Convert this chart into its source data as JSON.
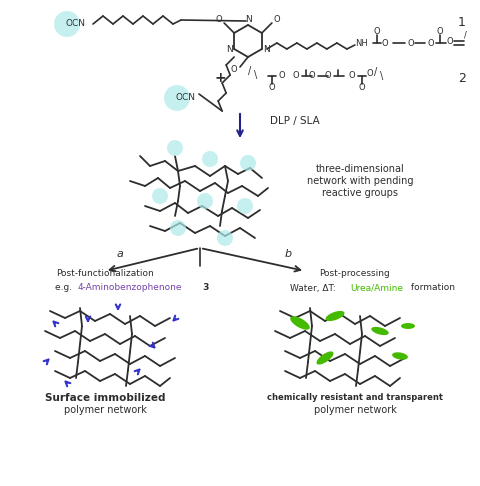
{
  "bg_color": "#ffffff",
  "dark_color": "#2d2d2d",
  "cyan_color": "#7ecece",
  "cyan_light": "#b8ecec",
  "blue_color": "#3333cc",
  "green_color": "#44bb00",
  "title_color": "#000000",
  "label_a": "a",
  "label_b": "b",
  "label_1": "1",
  "label_2": "2",
  "dlp_label": "DLP / SLA",
  "network_label": "three-dimensional\nnetwork with pending\nreactive groups",
  "post_func_label": "Post-functionalization\ne.g. 4-Aminobenzophenone 3",
  "post_proc_label": "Post-processing\nWater, ΔT: Urea/Amine formation",
  "surf_imm_bold": "Surface immobilized",
  "surf_imm_normal": "polymer network",
  "chem_res_bold": "chemically resistant and transparent",
  "chem_res_normal": "polymer network"
}
